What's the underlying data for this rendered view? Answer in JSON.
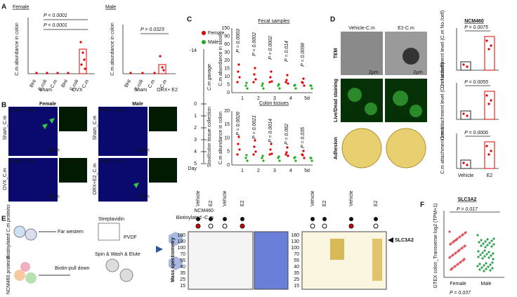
{
  "panelA": {
    "label": "A",
    "female": "Female",
    "male": "Male",
    "p_female": [
      "P < 0.0001",
      "P < 0.0001"
    ],
    "p_male": "P = 0.0323",
    "ylabel": "C.m abundance in colon",
    "x_female": [
      "BHI",
      "E.coli",
      "C.m",
      "BHI",
      "E.coli",
      "C.m"
    ],
    "groups_female": [
      "Sham",
      "OVX"
    ],
    "x_male": [
      "BHI",
      "E.coli",
      "C.m",
      "C.m"
    ],
    "groups_male": [
      "Sham",
      "ORX+ E2"
    ]
  },
  "panelB": {
    "label": "B",
    "female": "Female",
    "male": "Male",
    "rows_female": [
      "Sham_C.m",
      "OVX_C.m"
    ],
    "rows_male": [
      "Sham_C.m",
      "ORX+E2_C.m"
    ],
    "merge": "DAPI / C.m",
    "channel": "C.m",
    "scale": "50μm"
  },
  "panelC": {
    "label": "C",
    "legend": [
      "Female",
      "Male"
    ],
    "start": "-14",
    "gavage": "C.m gavage",
    "collection": "Stool/colon tissue collection",
    "days": [
      "0",
      "1",
      "2",
      "3",
      "4",
      "5"
    ],
    "day": "Day",
    "fecal_title": "Fecal samples",
    "colon_title": "Colon tissues",
    "ylabel_fecal": "C.m abundance in stool",
    "ylabel_colon": "C.m abundance in colon",
    "fecal_yticks": [
      "0",
      "5",
      "10",
      "15",
      "20",
      "30",
      "60",
      "90",
      "150"
    ],
    "colon_yticks": [
      "0",
      "5",
      "10",
      "15",
      "20"
    ],
    "xticks": [
      "1",
      "2",
      "3",
      "4",
      "5d"
    ],
    "p_fecal": [
      "P = 0.0003",
      "P = 0.0002",
      "P = 0.0002",
      "P = 0.014",
      "P = 0.0098"
    ],
    "p_colon": [
      "P = 0.0026",
      "P = 0.0021",
      "P = 0.0014",
      "P = 0.082",
      "P = 0.035"
    ]
  },
  "panelD": {
    "label": "D",
    "columns": [
      "Vehicle-C.m",
      "E2-C.m"
    ],
    "rows": [
      "TEM",
      "Live/Dead staining",
      "Adhesion"
    ],
    "scale": "2μm",
    "cell": "NCM460",
    "p": [
      "P = 0.0075",
      "P = 0.0055",
      "P = 0.0006"
    ],
    "ylabels": [
      "C.m attachment level (C.m No./cell)",
      "C.m attachment level (C.m No./cell)",
      "C.m attachment level"
    ],
    "xticks": [
      "Vehicle",
      "E2"
    ]
  },
  "panelE": {
    "label": "E",
    "schematic": {
      "biotin_cm": "Biotinylated C.m proteins",
      "far_western": "Far western",
      "streptavidin": "Streptavidin",
      "pvdf": "PVDF",
      "ncm_proteins": "NCM460 proteins",
      "pulldown": "Biotin-pull down",
      "spin": "Spin & Wash & Elute"
    },
    "ms": "Mass spectrometry",
    "row_labels": [
      "NCM460",
      "Biotinylated -C.m"
    ],
    "treat": [
      "Vehicle",
      "E2"
    ],
    "mw": [
      "180",
      "130",
      "100",
      "70",
      "55",
      "40",
      "35",
      "25",
      "15"
    ],
    "target": "SLC3A2"
  },
  "panelF": {
    "label": "F",
    "title": "SLC3A2",
    "p": "P = 0.017",
    "ylabel": "GTEX colon_Transverse log2 (TPM+1)",
    "xticks": [
      "Female",
      "Male"
    ],
    "footer": "P = 0.037"
  }
}
